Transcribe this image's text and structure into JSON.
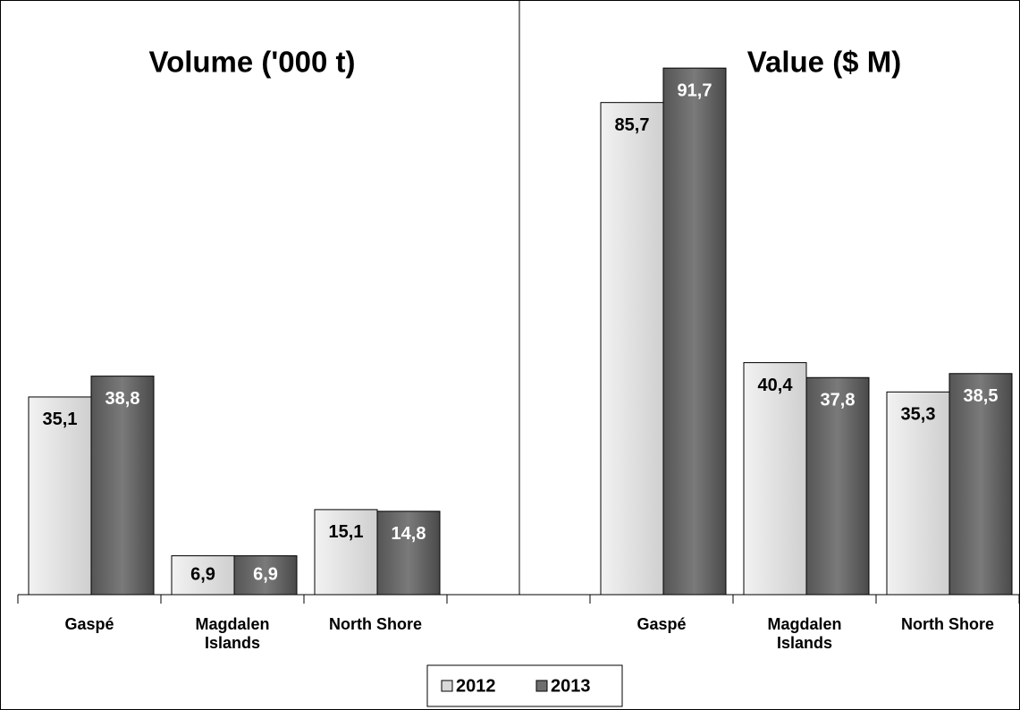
{
  "chart_data": [
    {
      "type": "bar",
      "title": "Volume ('000 t)",
      "categories": [
        "Gaspé",
        "Magdalen Islands",
        "North Shore"
      ],
      "series": [
        {
          "name": "2012",
          "color": "#d9d9d9",
          "values": [
            35.1,
            6.9,
            15.1
          ],
          "value_labels": [
            "35,1",
            "6,9",
            "15,1"
          ]
        },
        {
          "name": "2013",
          "color": "#6e6e6e",
          "values": [
            38.8,
            6.9,
            14.8
          ],
          "value_labels": [
            "38,8",
            "6,9",
            "14,8"
          ]
        }
      ],
      "ylim": [
        0,
        104
      ],
      "legend": "bottom"
    },
    {
      "type": "bar",
      "title": "Value ($ M)",
      "categories": [
        "Gaspé",
        "Magdalen Islands",
        "North Shore"
      ],
      "series": [
        {
          "color": "#d9d9d9",
          "values": [
            85.7,
            40.4,
            35.3
          ],
          "value_labels": [
            "85,7",
            "40,4",
            "35,3"
          ]
        },
        {
          "color": "#6e6e6e",
          "values": [
            91.7,
            37.8,
            38.5
          ],
          "value_labels": [
            "91,7",
            "37,8",
            "38,5"
          ]
        }
      ],
      "ylim": [
        0,
        102
      ]
    }
  ]
}
